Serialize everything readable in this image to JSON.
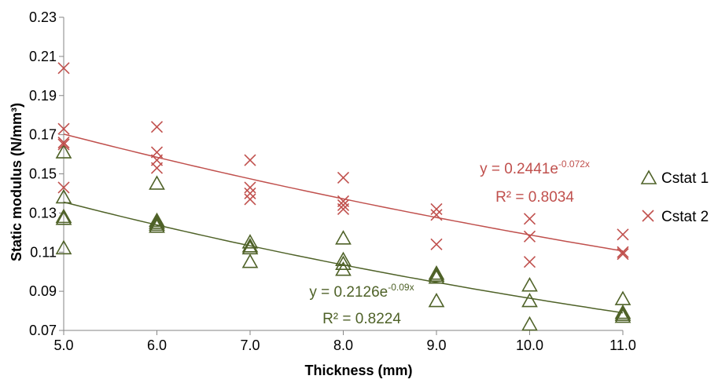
{
  "chart_data": {
    "type": "scatter",
    "xlabel": "Thickness (mm)",
    "ylabel": "Static modulus (N/mm³)",
    "xlim": [
      5.0,
      11.0
    ],
    "ylim": [
      0.07,
      0.23
    ],
    "x_ticks": [
      "5.0",
      "6.0",
      "7.0",
      "8.0",
      "9.0",
      "10.0",
      "11.0"
    ],
    "y_ticks": [
      "0.07",
      "0.09",
      "0.11",
      "0.13",
      "0.15",
      "0.17",
      "0.19",
      "0.21",
      "0.23"
    ],
    "grid": false,
    "legend_position": "right",
    "series": [
      {
        "name": "Cstat 1",
        "marker": "triangle",
        "color": "#4F6228",
        "points": [
          [
            5,
            0.161
          ],
          [
            5,
            0.138
          ],
          [
            5,
            0.128
          ],
          [
            5,
            0.127
          ],
          [
            5,
            0.112
          ],
          [
            6,
            0.145
          ],
          [
            6,
            0.126
          ],
          [
            6,
            0.125
          ],
          [
            6,
            0.124
          ],
          [
            6,
            0.123
          ],
          [
            7,
            0.115
          ],
          [
            7,
            0.113
          ],
          [
            7,
            0.112
          ],
          [
            7,
            0.105
          ],
          [
            8,
            0.117
          ],
          [
            8,
            0.106
          ],
          [
            8,
            0.104
          ],
          [
            8,
            0.101
          ],
          [
            9,
            0.099
          ],
          [
            9,
            0.098
          ],
          [
            9,
            0.097
          ],
          [
            9,
            0.085
          ],
          [
            10,
            0.093
          ],
          [
            10,
            0.085
          ],
          [
            10,
            0.073
          ],
          [
            11,
            0.086
          ],
          [
            11,
            0.079
          ],
          [
            11,
            0.078
          ],
          [
            11,
            0.077
          ]
        ],
        "trendline": {
          "type": "exponential",
          "a": 0.2126,
          "b": -0.09,
          "equation_base": "y = 0.2126e",
          "equation_exp": "-0.09x",
          "r2_label": "R² = 0.8224",
          "color": "#4F6228"
        }
      },
      {
        "name": "Cstat 2",
        "marker": "x",
        "color": "#C0504D",
        "points": [
          [
            5,
            0.204
          ],
          [
            5,
            0.173
          ],
          [
            5,
            0.166
          ],
          [
            5,
            0.165
          ],
          [
            5,
            0.143
          ],
          [
            6,
            0.174
          ],
          [
            6,
            0.161
          ],
          [
            6,
            0.157
          ],
          [
            6,
            0.153
          ],
          [
            7,
            0.157
          ],
          [
            7,
            0.143
          ],
          [
            7,
            0.14
          ],
          [
            7,
            0.137
          ],
          [
            8,
            0.148
          ],
          [
            8,
            0.136
          ],
          [
            8,
            0.134
          ],
          [
            8,
            0.132
          ],
          [
            9,
            0.132
          ],
          [
            9,
            0.129
          ],
          [
            9,
            0.114
          ],
          [
            10,
            0.127
          ],
          [
            10,
            0.118
          ],
          [
            10,
            0.105
          ],
          [
            11,
            0.119
          ],
          [
            11,
            0.11
          ],
          [
            11,
            0.109
          ]
        ],
        "trendline": {
          "type": "exponential",
          "a": 0.2441,
          "b": -0.072,
          "equation_base": "y = 0.2441e",
          "equation_exp": "-0.072x",
          "r2_label": "R² = 0.8034",
          "color": "#C0504D"
        }
      }
    ]
  }
}
